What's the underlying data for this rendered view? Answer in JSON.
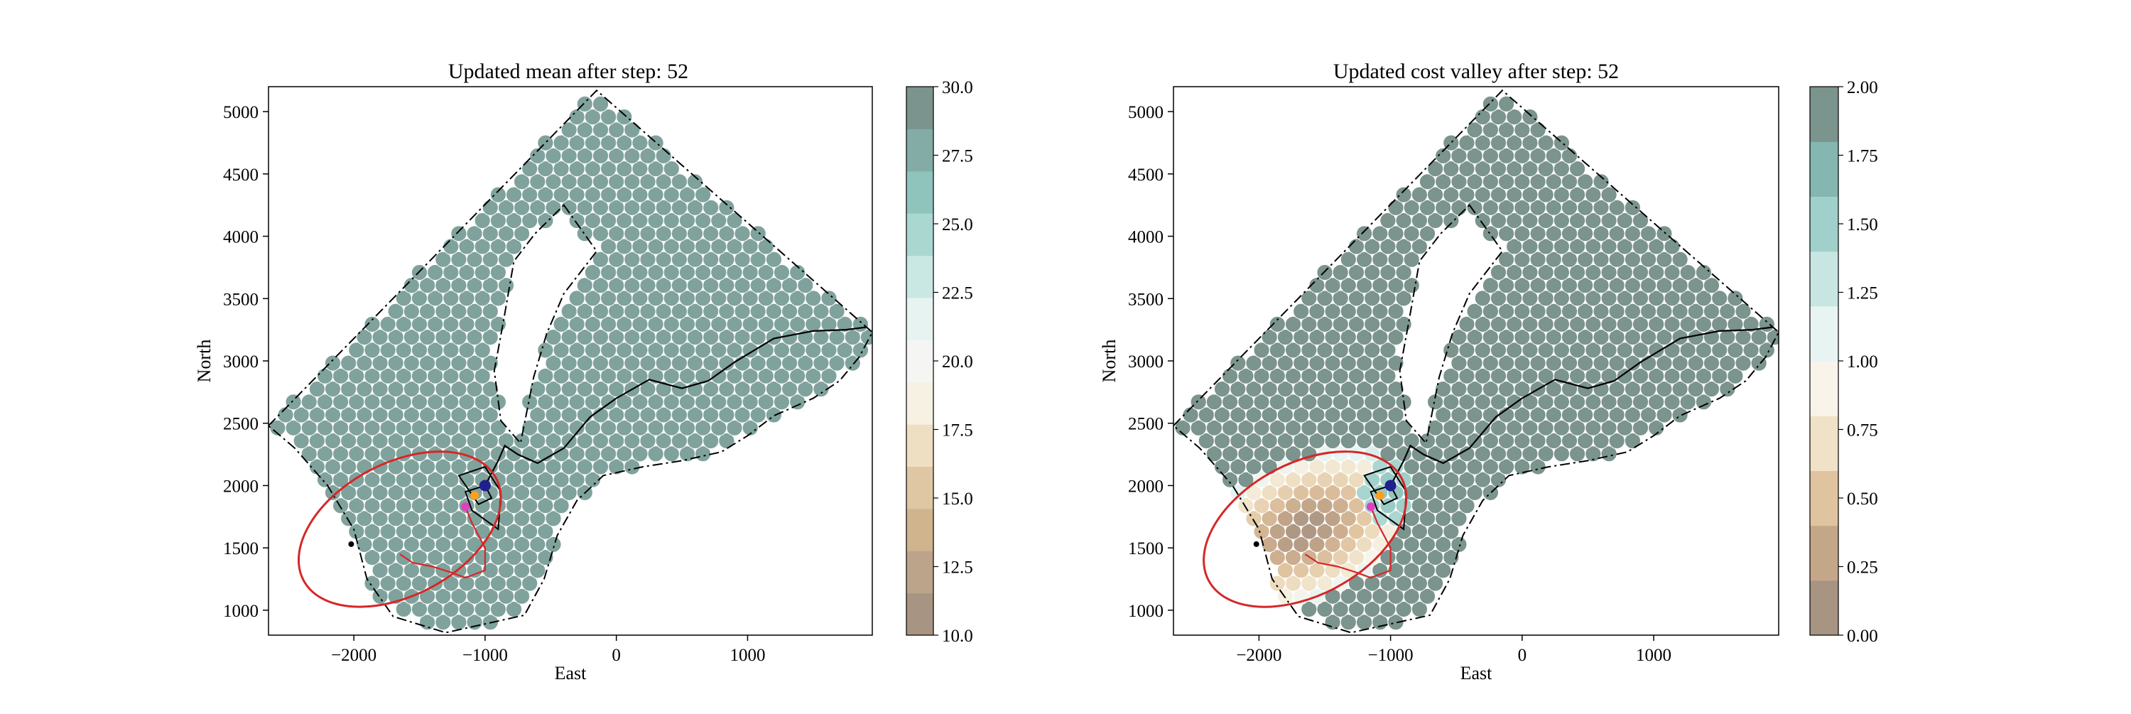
{
  "chart_data": [
    {
      "type": "scatter",
      "title": "Updated mean after step: 52",
      "xlabel": "East",
      "ylabel": "North",
      "xlim": [
        -2650,
        1950
      ],
      "ylim": [
        800,
        5200
      ],
      "xticks": [
        -2000,
        -1000,
        0,
        1000
      ],
      "xtick_labels": [
        "−2000",
        "−1000",
        "0",
        "1000"
      ],
      "yticks": [
        1000,
        1500,
        2000,
        2500,
        3000,
        3500,
        4000,
        4500,
        5000
      ],
      "ytick_labels": [
        "1000",
        "1500",
        "2000",
        "2500",
        "3000",
        "3500",
        "4000",
        "4500",
        "5000"
      ],
      "grid": false,
      "field": "mean",
      "colorbar": {
        "min": 10,
        "max": 30,
        "ticks": [
          10,
          12.5,
          15,
          17.5,
          20,
          22.5,
          25,
          27.5,
          30
        ],
        "tick_labels": [
          "10.0",
          "12.5",
          "15.0",
          "17.5",
          "20.0",
          "22.5",
          "25.0",
          "27.5",
          "30.0"
        ],
        "colors": [
          "#a89483",
          "#bba489",
          "#cfb48e",
          "#e0c7a3",
          "#eedfc3",
          "#f7f1e4",
          "#f5f5f3",
          "#e6f3f1",
          "#cae8e3",
          "#aad8d1",
          "#8fc4bc",
          "#84aca6",
          "#7b948d"
        ]
      },
      "ellipse": {
        "center": [
          -1650,
          1650
        ],
        "semi_axes": [
          830,
          530
        ],
        "angle_deg": 28,
        "color": "#d62728"
      },
      "markers": {
        "magenta": [
          -1150,
          1830
        ],
        "blue": [
          -1000,
          2000
        ],
        "orange": [
          -1080,
          1920
        ],
        "star": [
          -2020,
          1530
        ]
      }
    },
    {
      "type": "scatter",
      "title": "Updated cost valley after step: 52",
      "xlabel": "East",
      "ylabel": "North",
      "xlim": [
        -2650,
        1950
      ],
      "ylim": [
        800,
        5200
      ],
      "xticks": [
        -2000,
        -1000,
        0,
        1000
      ],
      "xtick_labels": [
        "−2000",
        "−1000",
        "0",
        "1000"
      ],
      "yticks": [
        1000,
        1500,
        2000,
        2500,
        3000,
        3500,
        4000,
        4500,
        5000
      ],
      "ytick_labels": [
        "1000",
        "1500",
        "2000",
        "2500",
        "3000",
        "3500",
        "4000",
        "4500",
        "5000"
      ],
      "grid": false,
      "field": "cost",
      "colorbar": {
        "min": 0,
        "max": 2,
        "ticks": [
          0,
          0.25,
          0.5,
          0.75,
          1,
          1.25,
          1.5,
          1.75,
          2
        ],
        "tick_labels": [
          "0.00",
          "0.25",
          "0.50",
          "0.75",
          "1.00",
          "1.25",
          "1.50",
          "1.75",
          "2.00"
        ],
        "colors": [
          "#a89483",
          "#c4a689",
          "#e0c39f",
          "#f0e2c7",
          "#f8f4ea",
          "#e8f4f2",
          "#c8e6e1",
          "#9fd0ca",
          "#83b7b0",
          "#7b948d"
        ]
      },
      "ellipse": {
        "center": [
          -1650,
          1650
        ],
        "semi_axes": [
          830,
          530
        ],
        "angle_deg": 28,
        "color": "#d62728"
      },
      "markers": {
        "magenta": [
          -1150,
          1830
        ],
        "blue": [
          -1000,
          2000
        ],
        "orange": [
          -1080,
          1920
        ],
        "star": [
          -2020,
          1530
        ]
      }
    }
  ],
  "domain": {
    "boundary": [
      [
        -2650,
        2480
      ],
      [
        -150,
        5170
      ],
      [
        1950,
        3230
      ],
      [
        1850,
        3030
      ],
      [
        1700,
        2840
      ],
      [
        1500,
        2700
      ],
      [
        1200,
        2560
      ],
      [
        1000,
        2400
      ],
      [
        800,
        2270
      ],
      [
        500,
        2200
      ],
      [
        200,
        2150
      ],
      [
        -100,
        2080
      ],
      [
        -300,
        1880
      ],
      [
        -450,
        1600
      ],
      [
        -550,
        1250
      ],
      [
        -700,
        960
      ],
      [
        -1300,
        820
      ],
      [
        -1700,
        950
      ],
      [
        -1900,
        1250
      ],
      [
        -2000,
        1650
      ],
      [
        -2200,
        2000
      ],
      [
        -2450,
        2300
      ]
    ],
    "hole": [
      [
        -400,
        4250
      ],
      [
        -150,
        3880
      ],
      [
        -400,
        3540
      ],
      [
        -530,
        3220
      ],
      [
        -630,
        2870
      ],
      [
        -730,
        2340
      ],
      [
        -880,
        2520
      ],
      [
        -930,
        2920
      ],
      [
        -860,
        3320
      ],
      [
        -780,
        3800
      ],
      [
        -620,
        4020
      ]
    ],
    "black_path": [
      [
        -1000,
        2000
      ],
      [
        -900,
        2200
      ],
      [
        -850,
        2320
      ],
      [
        -750,
        2250
      ],
      [
        -600,
        2180
      ],
      [
        -400,
        2300
      ],
      [
        -200,
        2550
      ],
      [
        0,
        2700
      ],
      [
        250,
        2850
      ],
      [
        500,
        2780
      ],
      [
        700,
        2840
      ],
      [
        900,
        2990
      ],
      [
        1200,
        3180
      ],
      [
        1500,
        3240
      ],
      [
        1750,
        3250
      ],
      [
        1900,
        3270
      ]
    ],
    "black_loop": [
      [
        -1000,
        2000
      ],
      [
        -1150,
        1950
      ],
      [
        -1100,
        1800
      ],
      [
        -900,
        1650
      ],
      [
        -880,
        1950
      ],
      [
        -1000,
        2150
      ],
      [
        -1200,
        2080
      ],
      [
        -1050,
        1850
      ],
      [
        -950,
        1900
      ],
      [
        -1000,
        2000
      ]
    ],
    "red_path": [
      [
        -1650,
        1450
      ],
      [
        -1550,
        1380
      ],
      [
        -1400,
        1350
      ],
      [
        -1250,
        1300
      ],
      [
        -1150,
        1260
      ],
      [
        -1000,
        1320
      ],
      [
        -1000,
        1500
      ],
      [
        -1100,
        1700
      ],
      [
        -1150,
        1830
      ]
    ],
    "bright_cell": [
      1150,
      2500
    ]
  }
}
